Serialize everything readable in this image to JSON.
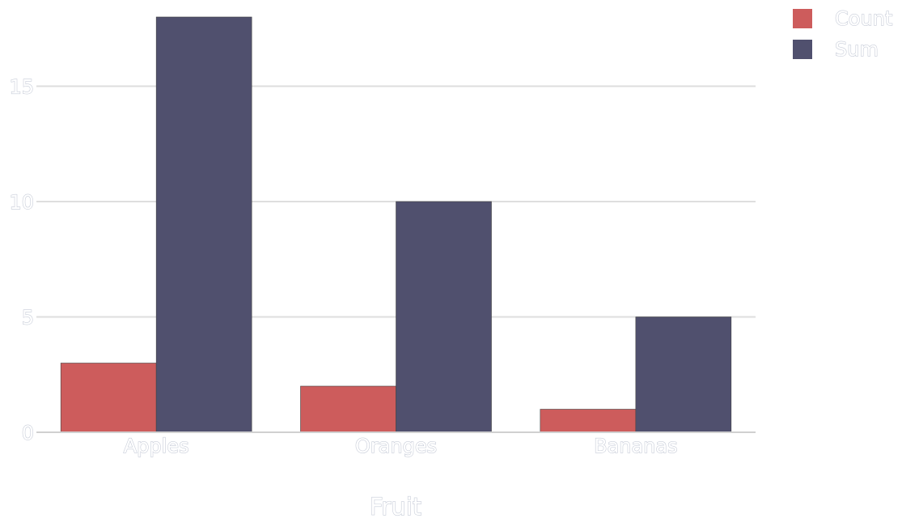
{
  "chart_data": {
    "type": "bar",
    "categories": [
      "Apples",
      "Oranges",
      "Bananas"
    ],
    "series": [
      {
        "name": "Count",
        "values": [
          3,
          2,
          1
        ],
        "color": "#cd5c5c"
      },
      {
        "name": "Sum",
        "values": [
          18,
          10,
          5
        ],
        "color": "#50506e"
      }
    ],
    "title": "",
    "xlabel": "Fruit",
    "ylabel": "",
    "ylim": [
      0,
      18
    ],
    "yticks": [
      0,
      5,
      10,
      15
    ],
    "grid": true,
    "legend_position": "top-right"
  }
}
